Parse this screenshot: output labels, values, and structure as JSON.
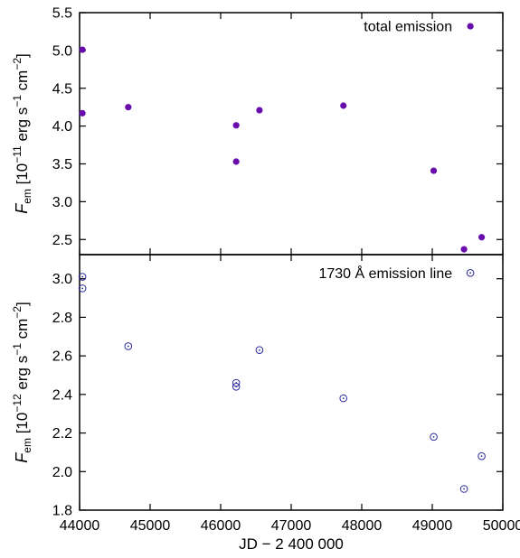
{
  "chart_data": [
    {
      "type": "scatter",
      "panel": "top",
      "title": "",
      "xlabel": "",
      "ylabel": {
        "main": "F",
        "sub": "em",
        "unit_open": " [10",
        "exp1": "−11",
        "unit_mid": " erg s",
        "exp2": "−1",
        "unit_mid2": " cm",
        "exp3": "−2",
        "unit_close": "]"
      },
      "xlim": [
        44000,
        50000
      ],
      "ylim": [
        2.3,
        5.5
      ],
      "yticks": [
        "2.5",
        "3.0",
        "3.5",
        "4.0",
        "4.5",
        "5.0",
        "5.5"
      ],
      "grid": false,
      "legend_position": "top-right",
      "series": [
        {
          "name": "total emission",
          "marker": "filled-circle",
          "color": "#6a0dad",
          "points": [
            {
              "x": 44040,
              "y": 5.01
            },
            {
              "x": 44040,
              "y": 4.17
            },
            {
              "x": 44690,
              "y": 4.25
            },
            {
              "x": 46220,
              "y": 4.01
            },
            {
              "x": 46220,
              "y": 3.53
            },
            {
              "x": 46550,
              "y": 4.21
            },
            {
              "x": 47740,
              "y": 4.27
            },
            {
              "x": 49020,
              "y": 3.41
            },
            {
              "x": 49450,
              "y": 2.37
            },
            {
              "x": 49700,
              "y": 2.53
            }
          ]
        }
      ],
      "legend_point": {
        "x": 49540,
        "y": 5.32
      }
    },
    {
      "type": "scatter",
      "panel": "bottom",
      "title": "",
      "xlabel": "JD − 2 400 000",
      "ylabel": {
        "main": "F",
        "sub": "em",
        "unit_open": " [10",
        "exp1": "−12",
        "unit_mid": " erg s",
        "exp2": "−1",
        "unit_mid2": " cm",
        "exp3": "−2",
        "unit_close": "]"
      },
      "xlim": [
        44000,
        50000
      ],
      "ylim": [
        1.8,
        3.125
      ],
      "xticks": [
        "44000",
        "45000",
        "46000",
        "47000",
        "48000",
        "49000",
        "50000"
      ],
      "yticks": [
        "1.8",
        "2.0",
        "2.2",
        "2.4",
        "2.6",
        "2.8",
        "3.0"
      ],
      "grid": false,
      "legend_position": "top-right",
      "series": [
        {
          "name": "1730 Å emission line",
          "marker": "open-circle-dot",
          "color": "#2b2b9a",
          "points": [
            {
              "x": 44040,
              "y": 3.01
            },
            {
              "x": 44040,
              "y": 2.95
            },
            {
              "x": 44690,
              "y": 2.65
            },
            {
              "x": 46220,
              "y": 2.46
            },
            {
              "x": 46220,
              "y": 2.44
            },
            {
              "x": 46550,
              "y": 2.63
            },
            {
              "x": 47740,
              "y": 2.38
            },
            {
              "x": 49020,
              "y": 2.18
            },
            {
              "x": 49450,
              "y": 1.91
            },
            {
              "x": 49700,
              "y": 2.08
            }
          ]
        }
      ],
      "legend_point": {
        "x": 49540,
        "y": 3.03
      }
    }
  ]
}
